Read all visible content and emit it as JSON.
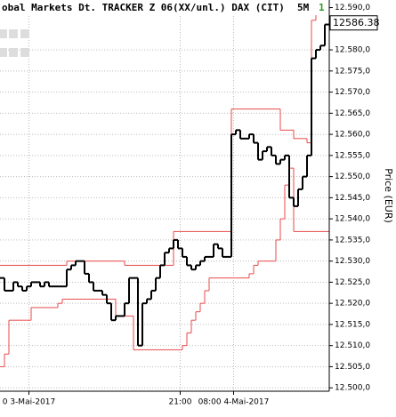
{
  "chart_data": {
    "type": "step-line",
    "title": "obal Markets Dt. TRACKER Z 06(XX/unl.) DAX (CIT)",
    "interval": "5M",
    "badge": "1",
    "badge_color": "#2a9a2a",
    "last_price": 12586.38,
    "y_axis_label": "Price (EUR)",
    "categories": [
      null,
      null,
      null,
      null,
      null,
      null,
      "0 3-Mai-2017",
      null,
      null,
      null,
      null,
      null,
      null,
      null,
      null,
      null,
      null,
      null,
      null,
      null,
      null,
      null,
      null,
      null,
      null,
      null,
      null,
      null,
      null,
      null,
      null,
      null,
      null,
      null,
      null,
      null,
      null,
      null,
      null,
      null,
      "21:00",
      null,
      null,
      null,
      null,
      null,
      null,
      null,
      null,
      null,
      null,
      null,
      "08:00 4-Mai-2017",
      null,
      null,
      null,
      null,
      null,
      null,
      null,
      null,
      null,
      null,
      null,
      null,
      null,
      null,
      null,
      null,
      null,
      null,
      null,
      null,
      null
    ],
    "series": [
      {
        "color": "#e84a4a",
        "width": 1,
        "values": [
          12529,
          12529,
          12529,
          12529,
          12529,
          12529,
          12529,
          12529,
          12529,
          12529,
          12529,
          12529,
          12529,
          12529,
          12529,
          12530,
          12530,
          12530,
          12530,
          12530,
          12530,
          12530,
          12530,
          12530,
          12530,
          12530,
          12530,
          12530,
          12529,
          12529,
          12529,
          12529,
          12529,
          12529,
          12529,
          12529,
          12529,
          12529,
          12529,
          12537,
          12537,
          12537,
          12537,
          12537,
          12537,
          12537,
          12537,
          12537,
          12537,
          12537,
          12537,
          12537,
          12566,
          12566,
          12566,
          12566,
          12566,
          12566,
          12566,
          12566,
          12566,
          12566,
          12566,
          12561,
          12561,
          12561,
          12559,
          12559,
          12559,
          12558,
          12587,
          12591,
          12591,
          12591
        ]
      },
      {
        "color": "#e84a4a",
        "width": 1,
        "values": [
          12505,
          12508,
          12516,
          12516,
          12516,
          12516,
          12516,
          12519,
          12519,
          12519,
          12519,
          12519,
          12519,
          12520,
          12521,
          12521,
          12521,
          12521,
          12521,
          12521,
          12521,
          12521,
          12521,
          12521,
          12521,
          12521,
          12517,
          12517,
          12517,
          12517,
          12509,
          12509,
          12509,
          12509,
          12509,
          12509,
          12509,
          12509,
          12509,
          12509,
          12509,
          12510,
          12513,
          12516,
          12518,
          12520,
          12523,
          12526,
          12526,
          12526,
          12526,
          12526,
          12526,
          12526,
          12526,
          12526,
          12527,
          12529,
          12530,
          12530,
          12530,
          12530,
          12535,
          12540,
          12548,
          12552,
          12537,
          12537,
          12537,
          12537,
          12537,
          12537,
          12537,
          12537
        ]
      },
      {
        "color": "#000000",
        "width": 2,
        "values": [
          12526,
          12523,
          12523,
          12525,
          12524,
          12523,
          12524,
          12525,
          12525,
          12524,
          12525,
          12524,
          12524,
          12524,
          12524,
          12528,
          12529,
          12530,
          12530,
          12527,
          12525,
          12523,
          12523,
          12522,
          12520,
          12516,
          12517,
          12517,
          12520,
          12526,
          12526,
          12510,
          12520,
          12521,
          12523,
          12526,
          12529,
          12532,
          12533,
          12535,
          12533,
          12531,
          12529,
          12528,
          12529,
          12530,
          12531,
          12531,
          12534,
          12533,
          12531,
          12531,
          12560,
          12561,
          12559,
          12559,
          12560,
          12558,
          12554,
          12556,
          12557,
          12555,
          12553,
          12554,
          12555,
          12545,
          12543,
          12547,
          12550,
          12555,
          12578,
          12580,
          12581,
          12586
        ]
      }
    ],
    "ylim": [
      12499.2,
      12591.8
    ],
    "yticks": [
      {
        "value": 12500,
        "label": "12.500,0"
      },
      {
        "value": 12505,
        "label": "12.505,0"
      },
      {
        "value": 12510,
        "label": "12.510,0"
      },
      {
        "value": 12515,
        "label": "12.515,0"
      },
      {
        "value": 12520,
        "label": "12.520,0"
      },
      {
        "value": 12525,
        "label": "12.525,0"
      },
      {
        "value": 12530,
        "label": "12.530,0"
      },
      {
        "value": 12535,
        "label": "12.535,0"
      },
      {
        "value": 12540,
        "label": "12.540,0"
      },
      {
        "value": 12545,
        "label": "12.545,0"
      },
      {
        "value": 12550,
        "label": "12.550,0"
      },
      {
        "value": 12555,
        "label": "12.555,0"
      },
      {
        "value": 12560,
        "label": "12.560,0"
      },
      {
        "value": 12565,
        "label": "12.565,0"
      },
      {
        "value": 12570,
        "label": "12.570,0"
      },
      {
        "value": 12575,
        "label": "12.575,0"
      },
      {
        "value": 12580,
        "label": "12.580,0"
      },
      {
        "value": 12590,
        "label": "12.590,0"
      }
    ],
    "grid": true
  }
}
